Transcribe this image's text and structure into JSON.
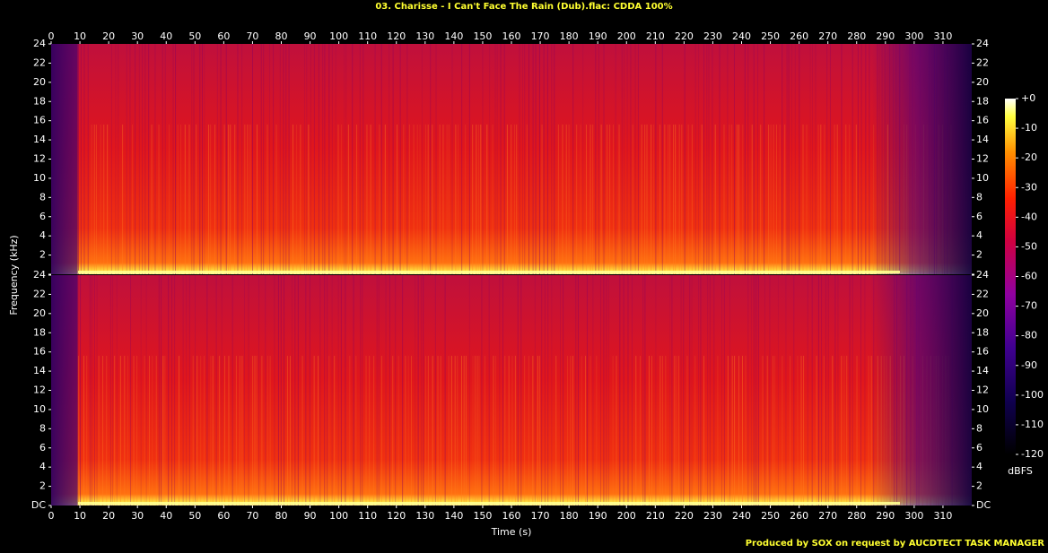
{
  "chart_data": {
    "type": "spectrogram",
    "title": "03. Charisse - I Can't Face The Rain (Dub).flac: CDDA 100%",
    "xlabel": "Time (s)",
    "ylabel": "Frequency (kHz)",
    "xlim": [
      0,
      320
    ],
    "xticks": [
      0,
      10,
      20,
      30,
      40,
      50,
      60,
      70,
      80,
      90,
      100,
      110,
      120,
      130,
      140,
      150,
      160,
      170,
      180,
      190,
      200,
      210,
      220,
      230,
      240,
      250,
      260,
      270,
      280,
      290,
      300,
      310
    ],
    "ylim": [
      0,
      24
    ],
    "yticks": [
      {
        "value": 0,
        "label": "DC"
      },
      2,
      4,
      6,
      8,
      10,
      12,
      14,
      16,
      18,
      20,
      22,
      24
    ],
    "colorbar": {
      "label": "dBFS",
      "lim": [
        -120,
        0
      ],
      "ticks": [
        {
          "value": 0,
          "label": "+0"
        },
        -10,
        -20,
        -30,
        -40,
        -50,
        -60,
        -70,
        -80,
        -90,
        -100,
        -110,
        -120
      ]
    },
    "footer": "Produced by SOX on request by AUCDTECT TASK MANAGER"
  }
}
